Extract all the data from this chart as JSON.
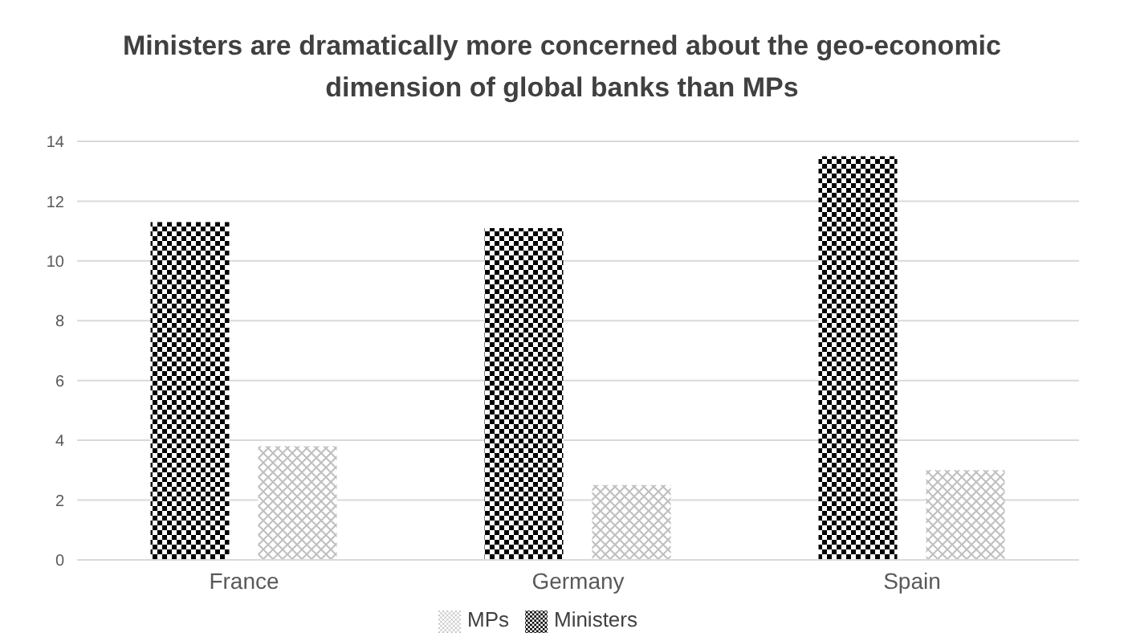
{
  "chart_data": {
    "type": "bar",
    "title": "Ministers are dramatically more concerned about the geo-economic dimension of global banks than MPs",
    "categories": [
      "France",
      "Germany",
      "Spain"
    ],
    "series": [
      {
        "name": "Ministers",
        "color": "#000000",
        "values": [
          11.3,
          11.1,
          13.5
        ]
      },
      {
        "name": "MPs",
        "color": "#bfbfbf",
        "values": [
          3.8,
          2.5,
          3.0
        ]
      }
    ],
    "ylim": [
      0,
      14
    ],
    "yticks": [
      0,
      2,
      4,
      6,
      8,
      10,
      12,
      14
    ],
    "grid": "y",
    "legend": "bottom"
  }
}
